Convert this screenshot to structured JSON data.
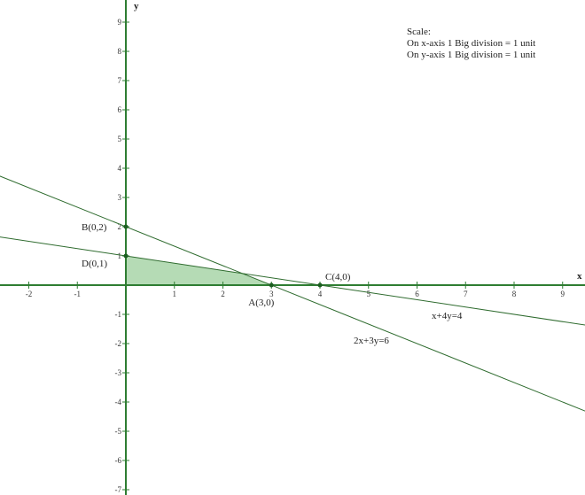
{
  "chart_data": {
    "type": "line",
    "xlabel": "x",
    "ylabel": "y",
    "xlim": [
      -2.6,
      9.47
    ],
    "ylim": [
      -7,
      9.5
    ],
    "x_ticks": [
      -2,
      -1,
      1,
      2,
      3,
      4,
      5,
      6,
      7,
      8,
      9
    ],
    "y_ticks": [
      9,
      8,
      7,
      6,
      5,
      4,
      3,
      2,
      1,
      -1,
      -2,
      -3,
      -4,
      -5,
      -6,
      -7
    ],
    "grid": false,
    "lines": [
      {
        "name": "x+4y=4",
        "a": 1,
        "b": 4,
        "c": 4,
        "color": "#2e6b2e"
      },
      {
        "name": "2x+3y=6",
        "a": 2,
        "b": 3,
        "c": 6,
        "color": "#2e6b2e"
      }
    ],
    "feasible_region": {
      "vertices": [
        [
          0,
          0
        ],
        [
          0,
          1
        ],
        [
          2.4,
          0.4
        ],
        [
          3,
          0
        ]
      ],
      "color": "#a8d5a8"
    },
    "points": [
      {
        "label": "B(0,2)",
        "x": 0,
        "y": 2
      },
      {
        "label": "D(0,1)",
        "x": 0,
        "y": 1
      },
      {
        "label": "A(3,0)",
        "x": 3,
        "y": 0
      },
      {
        "label": "C(4,0)",
        "x": 4,
        "y": 0
      }
    ],
    "axis_color": "#2e7d32"
  },
  "scale_note": {
    "title": "Scale:",
    "x_line": "On x-axis 1 Big division = 1 unit",
    "y_line": "On y-axis 1 Big division = 1 unit"
  }
}
